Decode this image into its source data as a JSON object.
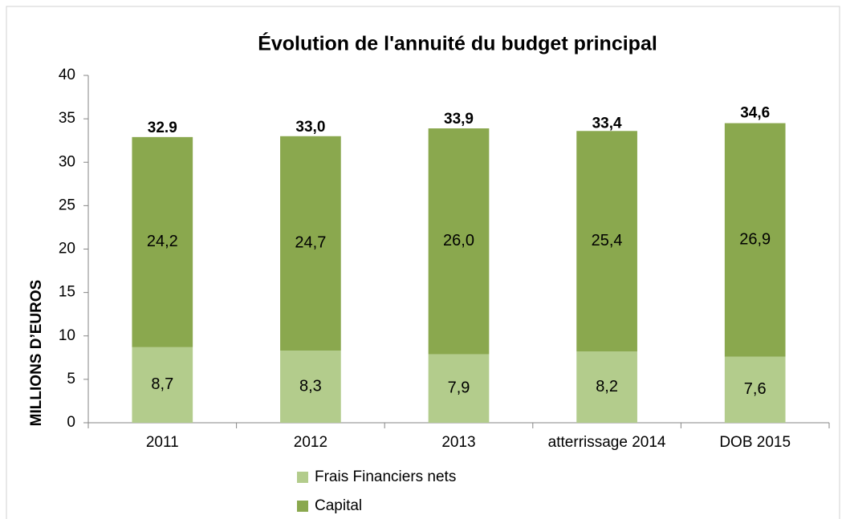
{
  "chart_data": {
    "type": "stacked_bar",
    "title": "Évolution de l'annuité du budget principal",
    "y_label": "MILLIONS D’EUROS",
    "categories": [
      "2011",
      "2012",
      "2013",
      "atterrissage 2014",
      "DOB 2015"
    ],
    "series": [
      {
        "name": "Frais Financiers nets",
        "color": "#b3cc8c",
        "values": [
          8.7,
          8.3,
          7.9,
          8.2,
          7.6
        ],
        "value_labels": [
          "8,7",
          "8,3",
          "7,9",
          "8,2",
          "7,6"
        ]
      },
      {
        "name": "Capital",
        "color": "#8aa84e",
        "values": [
          24.2,
          24.7,
          26.0,
          25.4,
          26.9
        ],
        "value_labels": [
          "24,2",
          "24,7",
          "26,0",
          "25,4",
          "26,9"
        ]
      }
    ],
    "totals": [
      32.9,
      33.0,
      33.9,
      33.4,
      34.6
    ],
    "total_labels": [
      "32.9",
      "33,0",
      "33,9",
      "33,4",
      "34,6"
    ],
    "ylim": [
      0,
      40
    ],
    "yticks": [
      0,
      5,
      10,
      15,
      20,
      25,
      30,
      35,
      40
    ],
    "grid": false
  }
}
